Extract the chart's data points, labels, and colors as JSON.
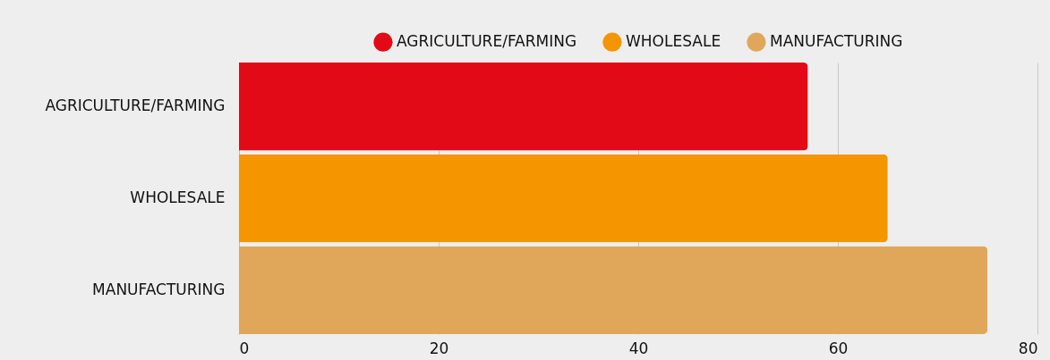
{
  "chart_data": {
    "type": "bar",
    "orientation": "horizontal",
    "categories": [
      "AGRICULTURE/FARMING",
      "WHOLESALE",
      "MANUFACTURING"
    ],
    "series": [
      {
        "name": "AGRICULTURE/FARMING",
        "color": "#e20a17",
        "values": [
          57,
          null,
          null
        ]
      },
      {
        "name": "WHOLESALE",
        "color": "#f59500",
        "values": [
          null,
          65,
          null
        ]
      },
      {
        "name": "MANUFACTURING",
        "color": "#e0a75a",
        "values": [
          null,
          null,
          75
        ]
      }
    ],
    "xlim": [
      0,
      80
    ],
    "xticks": [
      0,
      20,
      40,
      60,
      80
    ],
    "grid": "x",
    "legend": "top"
  }
}
